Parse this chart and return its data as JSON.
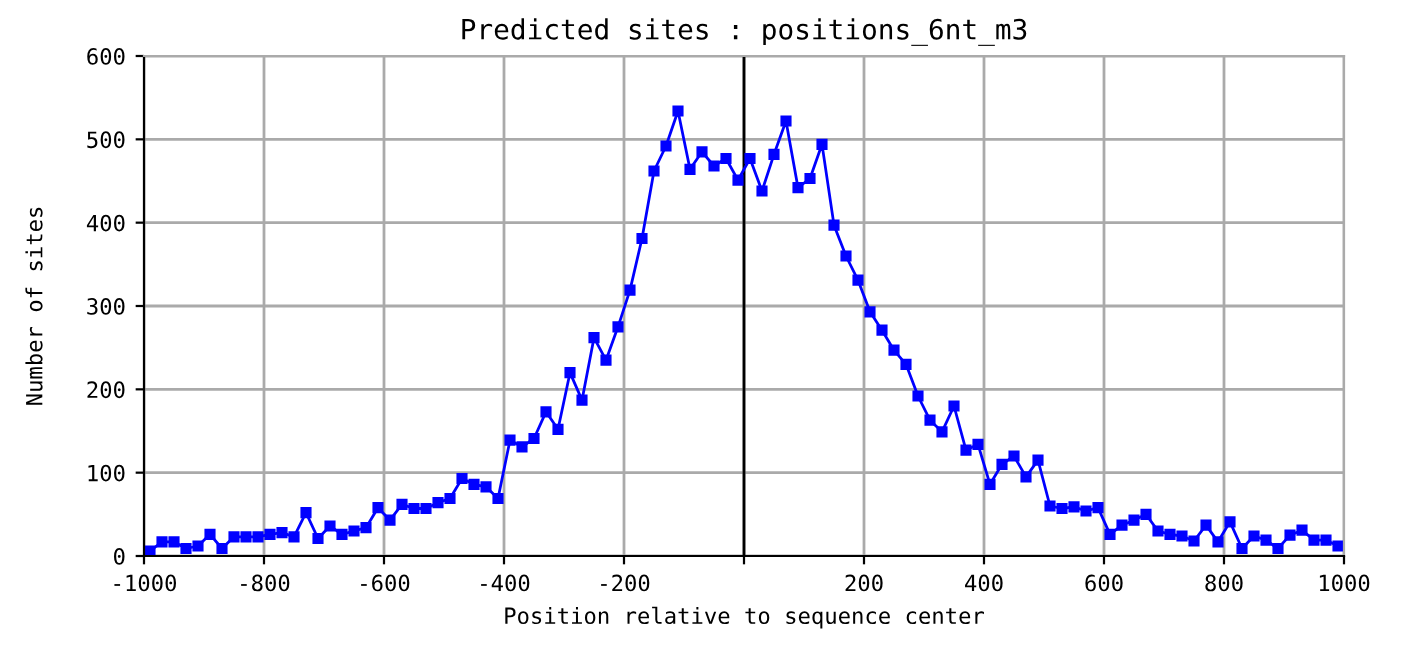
{
  "chart_data": {
    "type": "line",
    "title": "Predicted sites : positions_6nt_m3",
    "xlabel": "Position relative to sequence center",
    "ylabel": "Number of sites",
    "x": [
      -990,
      -970,
      -950,
      -930,
      -910,
      -890,
      -870,
      -850,
      -830,
      -810,
      -790,
      -770,
      -750,
      -730,
      -710,
      -690,
      -670,
      -650,
      -630,
      -610,
      -590,
      -570,
      -550,
      -530,
      -510,
      -490,
      -470,
      -450,
      -430,
      -410,
      -390,
      -370,
      -350,
      -330,
      -310,
      -290,
      -270,
      -250,
      -230,
      -210,
      -190,
      -170,
      -150,
      -130,
      -110,
      -90,
      -70,
      -50,
      -30,
      -10,
      10,
      30,
      50,
      70,
      90,
      110,
      130,
      150,
      170,
      190,
      210,
      230,
      250,
      270,
      290,
      310,
      330,
      350,
      370,
      390,
      410,
      430,
      450,
      470,
      490,
      510,
      530,
      550,
      570,
      590,
      610,
      630,
      650,
      670,
      690,
      710,
      730,
      750,
      770,
      790,
      810,
      830,
      850,
      870,
      890,
      910,
      930,
      950,
      970,
      990
    ],
    "series": [
      {
        "color": "#0000ff",
        "values": [
          6,
          17,
          17,
          9,
          12,
          26,
          9,
          23,
          23,
          23,
          26,
          28,
          23,
          52,
          21,
          36,
          26,
          30,
          34,
          58,
          43,
          62,
          57,
          57,
          64,
          69,
          93,
          86,
          83,
          69,
          139,
          131,
          141,
          173,
          152,
          220,
          187,
          262,
          235,
          275,
          319,
          381,
          462,
          492,
          534,
          464,
          485,
          468,
          477,
          451,
          477,
          438,
          482,
          522,
          442,
          453,
          494,
          397,
          360,
          331,
          293,
          271,
          247,
          230,
          192,
          163,
          149,
          180,
          127,
          134,
          86,
          110,
          120,
          95,
          115,
          60,
          57,
          59,
          54,
          58,
          26,
          37,
          43,
          50,
          30,
          26,
          24,
          18,
          37,
          17,
          41,
          9,
          24,
          19,
          9,
          25,
          31,
          19,
          19,
          12
        ]
      }
    ],
    "xlim": [
      -1000,
      1000
    ],
    "ylim": [
      0,
      600
    ],
    "xticks": [
      -1000,
      -800,
      -600,
      -400,
      -200,
      {
        "value": 0,
        "label": null
      },
      200,
      400,
      600,
      800,
      1000
    ],
    "yticks": [
      0,
      100,
      200,
      300,
      400,
      500,
      600
    ],
    "ref_lines": [
      {
        "axis": "x",
        "value": 0,
        "color": "#000000"
      }
    ],
    "grid": true,
    "marker": "square",
    "line_style": "solid",
    "legend": false
  }
}
